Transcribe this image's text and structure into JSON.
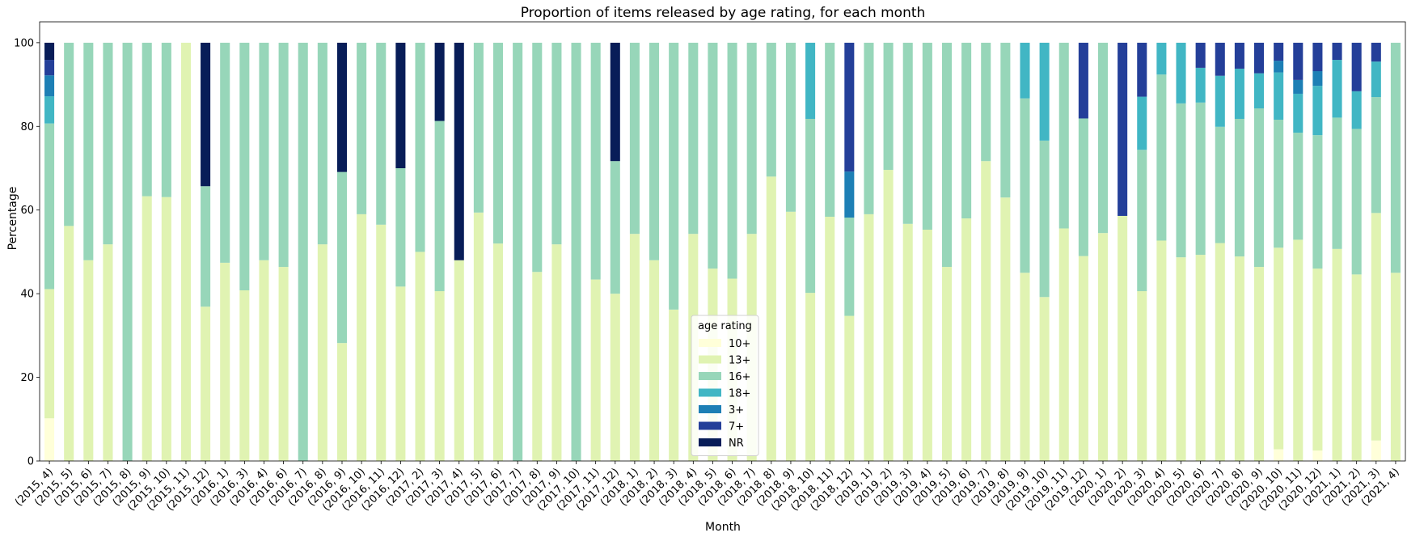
{
  "chart_data": {
    "type": "bar",
    "stacked": true,
    "title": "Proportion of items released by age rating, for each month",
    "xlabel": "Month",
    "ylabel": "Percentage",
    "ylim": [
      0,
      105
    ],
    "yticks": [
      0,
      20,
      40,
      60,
      80,
      100
    ],
    "grid": false,
    "legend": {
      "title": "age rating",
      "placement": "lower-center"
    },
    "categories": [
      "(2015, 4)",
      "(2015, 5)",
      "(2015, 6)",
      "(2015, 7)",
      "(2015, 8)",
      "(2015, 9)",
      "(2015, 10)",
      "(2015, 11)",
      "(2015, 12)",
      "(2016, 1)",
      "(2016, 3)",
      "(2016, 4)",
      "(2016, 6)",
      "(2016, 7)",
      "(2016, 8)",
      "(2016, 9)",
      "(2016, 10)",
      "(2016, 11)",
      "(2016, 12)",
      "(2017, 2)",
      "(2017, 3)",
      "(2017, 4)",
      "(2017, 5)",
      "(2017, 6)",
      "(2017, 7)",
      "(2017, 8)",
      "(2017, 9)",
      "(2017, 10)",
      "(2017, 11)",
      "(2017, 12)",
      "(2018, 1)",
      "(2018, 2)",
      "(2018, 3)",
      "(2018, 4)",
      "(2018, 5)",
      "(2018, 6)",
      "(2018, 7)",
      "(2018, 8)",
      "(2018, 9)",
      "(2018, 10)",
      "(2018, 11)",
      "(2018, 12)",
      "(2019, 1)",
      "(2019, 2)",
      "(2019, 3)",
      "(2019, 4)",
      "(2019, 5)",
      "(2019, 6)",
      "(2019, 7)",
      "(2019, 8)",
      "(2019, 9)",
      "(2019, 10)",
      "(2019, 11)",
      "(2019, 12)",
      "(2020, 1)",
      "(2020, 2)",
      "(2020, 3)",
      "(2020, 4)",
      "(2020, 5)",
      "(2020, 6)",
      "(2020, 7)",
      "(2020, 8)",
      "(2020, 9)",
      "(2020, 10)",
      "(2020, 11)",
      "(2020, 12)",
      "(2021, 1)",
      "(2021, 2)",
      "(2021, 3)",
      "(2021, 4)"
    ],
    "series": [
      {
        "name": "10+",
        "color": "#ffffd9",
        "values": [
          10.2,
          0,
          0,
          0,
          0,
          0,
          0,
          0,
          0,
          0,
          0,
          0,
          0,
          0,
          0,
          0,
          0,
          0,
          0,
          0,
          0,
          0,
          0,
          0,
          0,
          0,
          0,
          0,
          0,
          0,
          0,
          0,
          0,
          0,
          0,
          0,
          0,
          0,
          0,
          0,
          0,
          0,
          0,
          0,
          0,
          0,
          0,
          0,
          0,
          0,
          0,
          0,
          0,
          0,
          0,
          0,
          0,
          0,
          0,
          0,
          0,
          0,
          0,
          2.8,
          0,
          2.5,
          0,
          0,
          4.9,
          0
        ]
      },
      {
        "name": "13+",
        "color": "#e0f3b2",
        "values": [
          30.9,
          56.2,
          48.0,
          51.8,
          0,
          63.3,
          63.1,
          100,
          36.9,
          47.4,
          40.8,
          48.0,
          46.4,
          0,
          51.8,
          28.2,
          59.0,
          56.5,
          41.7,
          50.0,
          40.6,
          48.0,
          59.4,
          52.0,
          0,
          45.2,
          51.8,
          0,
          43.4,
          40.0,
          54.3,
          48.0,
          36.2,
          54.3,
          46.0,
          43.6,
          54.3,
          68.0,
          59.6,
          40.2,
          58.4,
          34.7,
          59.0,
          69.6,
          56.7,
          55.3,
          46.4,
          58.0,
          71.7,
          63.0,
          45.0,
          39.2,
          55.6,
          49.0,
          54.5,
          58.6,
          40.6,
          52.7,
          48.7,
          49.3,
          52.1,
          48.9,
          46.4,
          48.2,
          52.9,
          43.5,
          50.7,
          44.6,
          54.4,
          45.0
        ]
      },
      {
        "name": "16+",
        "color": "#97d6b9",
        "values": [
          39.6,
          43.8,
          52.0,
          48.2,
          100,
          36.7,
          36.9,
          0,
          28.8,
          52.6,
          59.2,
          52.0,
          53.6,
          100,
          48.2,
          40.9,
          41.0,
          43.5,
          28.3,
          50.0,
          40.7,
          0,
          40.6,
          48.0,
          100,
          54.8,
          48.2,
          100,
          56.6,
          31.7,
          45.7,
          52.0,
          63.8,
          45.7,
          54.0,
          56.4,
          45.7,
          32.0,
          40.4,
          41.6,
          41.6,
          23.5,
          41.0,
          30.4,
          43.3,
          44.7,
          53.6,
          42.0,
          28.3,
          37.0,
          41.7,
          37.4,
          44.4,
          32.9,
          45.5,
          0,
          33.8,
          39.7,
          36.8,
          36.4,
          27.8,
          32.9,
          37.9,
          30.6,
          25.6,
          31.9,
          31.4,
          34.8,
          27.7,
          55.0
        ]
      },
      {
        "name": "18+",
        "color": "#41b6c4",
        "values": [
          6.5,
          0,
          0,
          0,
          0,
          0,
          0,
          0,
          0,
          0,
          0,
          0,
          0,
          0,
          0,
          0,
          0,
          0,
          0,
          0,
          0,
          0,
          0,
          0,
          0,
          0,
          0,
          0,
          0,
          0,
          0,
          0,
          0,
          0,
          0,
          0,
          0,
          0,
          0,
          18.2,
          0,
          0,
          0,
          0,
          0,
          0,
          0,
          0,
          0,
          0,
          13.3,
          23.4,
          0,
          0,
          0,
          0,
          12.7,
          7.6,
          14.5,
          8.3,
          12.2,
          12.0,
          8.4,
          11.3,
          9.3,
          11.8,
          13.8,
          9.0,
          8.5,
          0
        ]
      },
      {
        "name": "3+",
        "color": "#1d7fb5",
        "values": [
          5.0,
          0,
          0,
          0,
          0,
          0,
          0,
          0,
          0,
          0,
          0,
          0,
          0,
          0,
          0,
          0,
          0,
          0,
          0,
          0,
          0,
          0,
          0,
          0,
          0,
          0,
          0,
          0,
          0,
          0,
          0,
          0,
          0,
          0,
          0,
          0,
          0,
          0,
          0,
          0,
          0,
          11.0,
          0,
          0,
          0,
          0,
          0,
          0,
          0,
          0,
          0,
          0,
          0,
          0,
          0,
          0,
          0,
          0,
          0,
          0,
          0,
          0,
          0,
          2.8,
          3.3,
          3.5,
          0,
          0,
          0,
          0
        ]
      },
      {
        "name": "7+",
        "color": "#243f99",
        "values": [
          3.7,
          0,
          0,
          0,
          0,
          0,
          0,
          0,
          0,
          0,
          0,
          0,
          0,
          0,
          0,
          0,
          0,
          0,
          0,
          0,
          0,
          0,
          0,
          0,
          0,
          0,
          0,
          0,
          0,
          0,
          0,
          0,
          0,
          0,
          0,
          0,
          0,
          0,
          0,
          0,
          0,
          30.8,
          0,
          0,
          0,
          0,
          0,
          0,
          0,
          0,
          0,
          0,
          0,
          18.1,
          0,
          41.4,
          12.9,
          0,
          0,
          6.0,
          7.9,
          6.2,
          7.3,
          4.3,
          8.9,
          6.8,
          4.1,
          11.6,
          4.5,
          0
        ]
      },
      {
        "name": "NR",
        "color": "#081d58",
        "values": [
          4.1,
          0,
          0,
          0,
          0,
          0,
          0,
          0,
          34.3,
          0,
          0,
          0,
          0,
          0,
          0,
          30.9,
          0,
          0,
          30.0,
          0,
          18.7,
          52.0,
          0,
          0,
          0,
          0,
          0,
          0,
          0,
          28.3,
          0,
          0,
          0,
          0,
          0,
          0,
          0,
          0,
          0,
          0,
          0,
          0,
          0,
          0,
          0,
          0,
          0,
          0,
          0,
          0,
          0,
          0,
          0,
          0,
          0,
          0,
          0,
          0,
          0,
          0,
          0,
          0,
          0,
          0,
          0,
          0,
          0,
          0,
          0,
          0
        ]
      }
    ]
  }
}
